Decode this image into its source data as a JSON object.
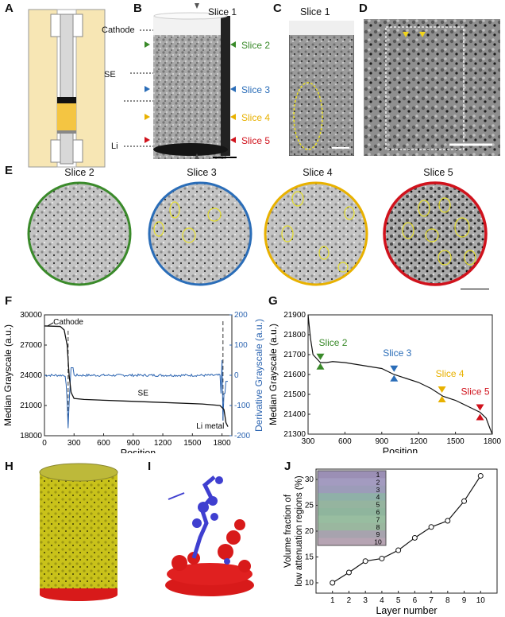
{
  "panels": {
    "A": "A",
    "B": "B",
    "C": "C",
    "D": "D",
    "E": "E",
    "F": "F",
    "G": "G",
    "H": "H",
    "I": "I",
    "J": "J"
  },
  "schematic": {
    "cathode": "Cathode",
    "se": "SE",
    "li": "Li"
  },
  "slices": {
    "s1": "Slice 1",
    "s2": "Slice 2",
    "s3": "Slice 3",
    "s4": "Slice 4",
    "s5": "Slice 5"
  },
  "colors": {
    "s2": "#3a8a2a",
    "s3": "#2a6db8",
    "s4": "#e8b100",
    "s5": "#d0121c",
    "deriv": "#2a63b0"
  },
  "chart_data": [
    {
      "panel": "F",
      "type": "line",
      "xlabel": "Position",
      "ylabel": "Median Grayscale (a.u.)",
      "y2label": "Derivative Grayscale (a.u.)",
      "xlim": [
        0,
        1900
      ],
      "ylim": [
        18000,
        30000
      ],
      "y2lim": [
        -200,
        200
      ],
      "xticks": [
        "0",
        "300",
        "600",
        "900",
        "1200",
        "1500",
        "1800"
      ],
      "yticks": [
        "18000",
        "21000",
        "24000",
        "27000",
        "30000"
      ],
      "y2ticks": [
        "-200",
        "-100",
        "0",
        "100",
        "200"
      ],
      "annotations": {
        "cathode": "Cathode",
        "se": "SE",
        "li": "Li metal"
      },
      "series": [
        {
          "name": "Median Grayscale",
          "x": [
            0,
            160,
            200,
            230,
            250,
            270,
            300,
            400,
            800,
            1200,
            1600,
            1780,
            1820,
            1840,
            1860
          ],
          "y": [
            28900,
            28850,
            28500,
            27000,
            24000,
            22300,
            21700,
            21600,
            21450,
            21300,
            21150,
            21000,
            20600,
            19300,
            18900
          ]
        }
      ]
    },
    {
      "panel": "G",
      "type": "line",
      "xlabel": "Position",
      "ylabel": "Median Grayscale (a.u.)",
      "xlim": [
        300,
        1800
      ],
      "ylim": [
        21300,
        21900
      ],
      "xticks": [
        "300",
        "600",
        "900",
        "1200",
        "1500",
        "1800"
      ],
      "yticks": [
        "21300",
        "21400",
        "21500",
        "21600",
        "21700",
        "21800",
        "21900"
      ],
      "series": [
        {
          "name": "Median Grayscale",
          "x": [
            300,
            320,
            340,
            370,
            400,
            450,
            500,
            600,
            700,
            800,
            900,
            1000,
            1100,
            1200,
            1300,
            1400,
            1500,
            1600,
            1700,
            1750,
            1780,
            1800
          ],
          "y": [
            21900,
            21780,
            21700,
            21680,
            21660,
            21660,
            21665,
            21660,
            21650,
            21640,
            21630,
            21600,
            21580,
            21560,
            21530,
            21490,
            21470,
            21440,
            21410,
            21380,
            21330,
            21300
          ]
        }
      ],
      "markers": [
        {
          "label": "Slice 2",
          "x": 400,
          "y": 21665
        },
        {
          "label": "Slice 3",
          "x": 1000,
          "y": 21605
        },
        {
          "label": "Slice 4",
          "x": 1390,
          "y": 21500
        },
        {
          "label": "Slice 5",
          "x": 1700,
          "y": 21410
        }
      ]
    },
    {
      "panel": "J",
      "type": "line",
      "xlabel": "Layer number",
      "ylabel": "Volume fraction of low attenuation regions (%)",
      "ylabel1": "Volume fraction of",
      "ylabel2": "low attenuation regions (%)",
      "xlim": [
        0,
        11
      ],
      "ylim": [
        8,
        32
      ],
      "xticks": [
        "1",
        "2",
        "3",
        "4",
        "5",
        "6",
        "7",
        "8",
        "9",
        "10"
      ],
      "yticks": [
        "10",
        "15",
        "20",
        "25",
        "30"
      ],
      "x": [
        1,
        2,
        3,
        4,
        5,
        6,
        7,
        8,
        9,
        10
      ],
      "values": [
        10.0,
        12.0,
        14.2,
        14.7,
        16.3,
        18.7,
        20.8,
        22.0,
        25.8,
        30.7
      ],
      "inset_labels": [
        "1",
        "2",
        "3",
        "4",
        "5",
        "6",
        "7",
        "8",
        "9",
        "10"
      ]
    }
  ]
}
